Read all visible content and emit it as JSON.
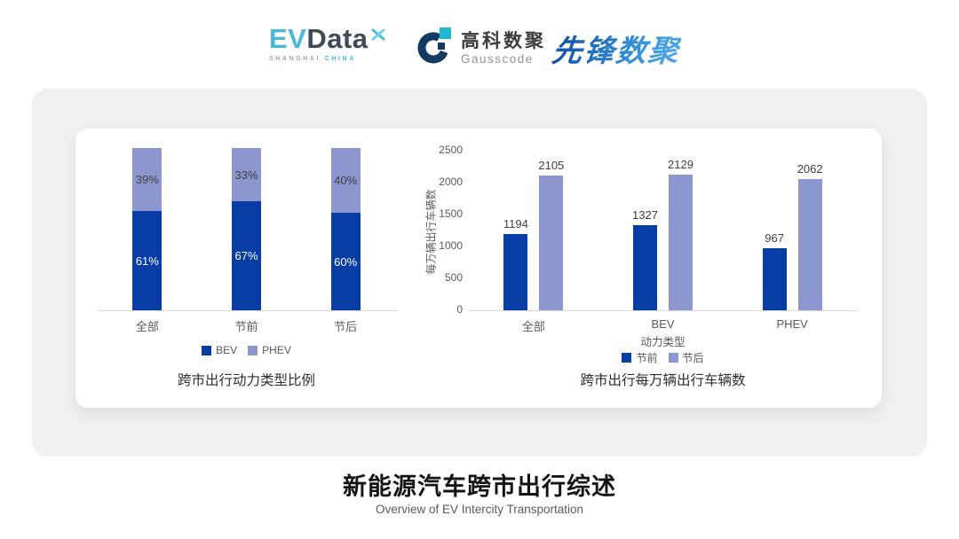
{
  "header": {
    "evdata": {
      "part1": "EV",
      "part2": "Data",
      "sub1": "SHANGHAI",
      "sub2": "CHINA"
    },
    "gausscode": {
      "cn": "高科数聚",
      "en": "Gausscode"
    },
    "pioneer": {
      "text": "先锋数聚"
    }
  },
  "chart_data": [
    {
      "type": "bar",
      "subtype": "stacked-percent",
      "title": "跨市出行动力类型比例",
      "categories": [
        "全部",
        "节前",
        "节后"
      ],
      "series": [
        {
          "name": "BEV",
          "color": "#083da6",
          "label_color": "#ffffff",
          "values": [
            61,
            67,
            60
          ],
          "labels": [
            "61%",
            "67%",
            "60%"
          ]
        },
        {
          "name": "PHEV",
          "color": "#8b97ce",
          "label_color": "#404040",
          "values": [
            39,
            33,
            40
          ],
          "labels": [
            "39%",
            "33%",
            "40%"
          ]
        }
      ],
      "ylim": [
        0,
        100
      ],
      "unit": "%",
      "grid": false,
      "legend_position": "bottom"
    },
    {
      "type": "bar",
      "subtype": "grouped",
      "title": "跨市出行每万辆出行车辆数",
      "categories": [
        "全部",
        "BEV",
        "PHEV"
      ],
      "xlabel": "动力类型",
      "ylabel": "每万辆出行车辆数",
      "yticks": [
        0,
        500,
        1000,
        1500,
        2000,
        2500
      ],
      "ylim": [
        0,
        2500
      ],
      "series": [
        {
          "name": "节前",
          "color": "#083da6",
          "values": [
            1194,
            1327,
            967
          ]
        },
        {
          "name": "节后",
          "color": "#8b97ce",
          "values": [
            2105,
            2129,
            2062
          ]
        }
      ],
      "grid": false,
      "legend_position": "bottom"
    }
  ],
  "footer": {
    "title": "新能源汽车跨市出行综述",
    "subtitle": "Overview of EV Intercity Transportation"
  },
  "colors": {
    "primary": "#083da6",
    "secondary": "#8b97ce",
    "axis_text": "#595959",
    "value_label": "#404040",
    "axis_line": "#d9d9d9",
    "panel_bg": "#f0f0f1"
  }
}
